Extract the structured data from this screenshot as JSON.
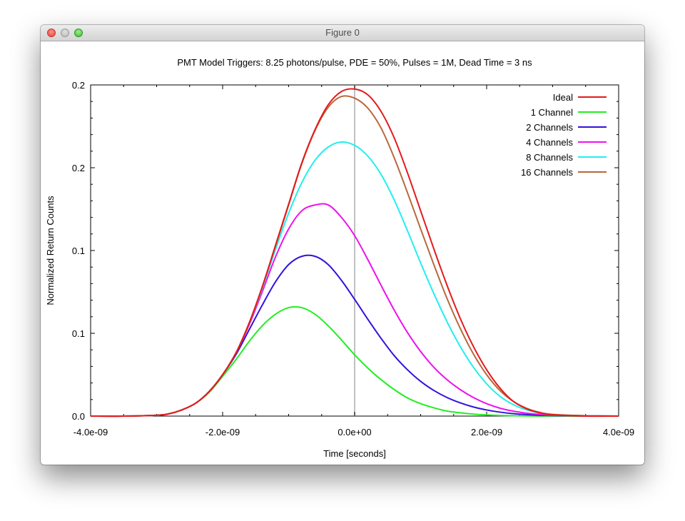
{
  "window": {
    "title": "Figure 0"
  },
  "chart_data": {
    "type": "line",
    "title": "PMT Model Triggers: 8.25 photons/pulse, PDE = 50%, Pulses = 1M, Dead Time = 3 ns",
    "xlabel": "Time [seconds]",
    "ylabel": "Normalized Return Counts",
    "xlim": [
      -4e-09,
      4e-09
    ],
    "ylim": [
      0,
      0.2
    ],
    "x_ticks": [
      {
        "value": -4e-09,
        "label": "-4.0e-09"
      },
      {
        "value": -2e-09,
        "label": "-2.0e-09"
      },
      {
        "value": 0,
        "label": "0.0e+00"
      },
      {
        "value": 2e-09,
        "label": "2.0e-09"
      },
      {
        "value": 4e-09,
        "label": "4.0e-09"
      }
    ],
    "y_ticks": [
      {
        "value": 0.0,
        "label": "0.0"
      },
      {
        "value": 0.05,
        "label": "0.1"
      },
      {
        "value": 0.1,
        "label": "0.1"
      },
      {
        "value": 0.15,
        "label": "0.2"
      },
      {
        "value": 0.2,
        "label": "0.2"
      }
    ],
    "vertical_marker_x": 0,
    "marker_color": "#c0c0c0",
    "grid": false,
    "legend_position": "top-right",
    "x": [
      -4e-09,
      -3.5e-09,
      -3e-09,
      -2.8e-09,
      -2.6e-09,
      -2.4e-09,
      -2.2e-09,
      -2e-09,
      -1.8e-09,
      -1.6e-09,
      -1.4e-09,
      -1.2e-09,
      -1e-09,
      -8e-10,
      -6e-10,
      -4e-10,
      -2e-10,
      0.0,
      2e-10,
      4e-10,
      6e-10,
      8e-10,
      1e-09,
      1.2e-09,
      1.4e-09,
      1.6e-09,
      1.8e-09,
      2e-09,
      2.2e-09,
      2.4e-09,
      2.6e-09,
      2.8e-09,
      3e-09,
      3.5e-09,
      4e-09
    ],
    "series": [
      {
        "name": "Ideal",
        "color": "#e41a1c",
        "values": [
          0.0,
          0.0,
          0.0005,
          0.0015,
          0.004,
          0.008,
          0.015,
          0.025,
          0.038,
          0.056,
          0.078,
          0.103,
          0.128,
          0.153,
          0.173,
          0.188,
          0.196,
          0.1975,
          0.194,
          0.184,
          0.168,
          0.147,
          0.124,
          0.101,
          0.079,
          0.059,
          0.042,
          0.028,
          0.017,
          0.009,
          0.0045,
          0.002,
          0.0008,
          0.0,
          0.0
        ]
      },
      {
        "name": "1 Channel",
        "color": "#22ee22",
        "values": [
          0.0,
          0.0,
          0.0005,
          0.0015,
          0.004,
          0.008,
          0.0145,
          0.024,
          0.034,
          0.045,
          0.0545,
          0.0615,
          0.0655,
          0.0655,
          0.0615,
          0.0545,
          0.046,
          0.037,
          0.029,
          0.022,
          0.016,
          0.011,
          0.0075,
          0.005,
          0.003,
          0.002,
          0.0012,
          0.0007,
          0.0004,
          0.0002,
          0.0001,
          0.0,
          0.0,
          0.0,
          0.0
        ]
      },
      {
        "name": "2 Channels",
        "color": "#3311dd",
        "values": [
          0.0,
          0.0,
          0.0005,
          0.0015,
          0.004,
          0.008,
          0.015,
          0.025,
          0.037,
          0.052,
          0.067,
          0.081,
          0.0915,
          0.0965,
          0.0965,
          0.0915,
          0.082,
          0.0705,
          0.0585,
          0.047,
          0.0365,
          0.028,
          0.021,
          0.0155,
          0.0112,
          0.008,
          0.0055,
          0.0037,
          0.0024,
          0.0015,
          0.0009,
          0.0005,
          0.0003,
          0.0001,
          0.0
        ]
      },
      {
        "name": "4 Channels",
        "color": "#ee11ee",
        "values": [
          0.0,
          0.0,
          0.0005,
          0.0015,
          0.004,
          0.008,
          0.015,
          0.025,
          0.038,
          0.055,
          0.075,
          0.096,
          0.113,
          0.124,
          0.1275,
          0.1275,
          0.12,
          0.109,
          0.0945,
          0.079,
          0.064,
          0.0505,
          0.039,
          0.0295,
          0.022,
          0.016,
          0.0112,
          0.0075,
          0.0048,
          0.003,
          0.0018,
          0.001,
          0.0005,
          0.0002,
          0.0
        ]
      },
      {
        "name": "8 Channels",
        "color": "#22eeee",
        "values": [
          0.0,
          0.0,
          0.0005,
          0.0015,
          0.004,
          0.008,
          0.015,
          0.025,
          0.038,
          0.056,
          0.077,
          0.1005,
          0.1225,
          0.141,
          0.1545,
          0.1625,
          0.1655,
          0.1635,
          0.157,
          0.146,
          0.1305,
          0.112,
          0.0925,
          0.074,
          0.057,
          0.042,
          0.0295,
          0.0195,
          0.012,
          0.007,
          0.0038,
          0.0019,
          0.0009,
          0.0002,
          0.0
        ]
      },
      {
        "name": "16 Channels",
        "color": "#b8683a",
        "values": [
          0.0,
          0.0,
          0.0005,
          0.0015,
          0.004,
          0.008,
          0.015,
          0.025,
          0.038,
          0.056,
          0.078,
          0.1025,
          0.1275,
          0.1525,
          0.1725,
          0.1865,
          0.193,
          0.192,
          0.186,
          0.174,
          0.156,
          0.135,
          0.113,
          0.0915,
          0.071,
          0.053,
          0.0375,
          0.025,
          0.0155,
          0.009,
          0.0048,
          0.0023,
          0.001,
          0.0002,
          0.0
        ]
      }
    ]
  }
}
